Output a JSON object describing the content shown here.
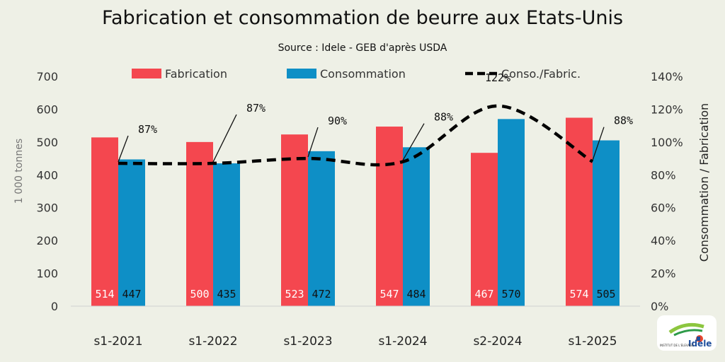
{
  "header": {
    "title": "Fabrication et consommation de beurre aux Etats-Unis",
    "subtitle": "Source : Idele - GEB d'après USDA"
  },
  "chart_data": {
    "type": "bar",
    "categories": [
      "s1-2021",
      "s1-2022",
      "s1-2023",
      "s1-2024",
      "s2-2024",
      "s1-2025"
    ],
    "series": [
      {
        "name": "Fabrication",
        "type": "bar",
        "axis": "left",
        "color": "#f4474f",
        "values": [
          514,
          500,
          523,
          547,
          467,
          574
        ]
      },
      {
        "name": "Consommation",
        "type": "bar",
        "axis": "left",
        "color": "#0e8fc6",
        "values": [
          447,
          435,
          472,
          484,
          570,
          505
        ]
      },
      {
        "name": "Conso./Fabric.",
        "type": "line",
        "style": "dashed",
        "axis": "right",
        "color": "#000000",
        "values": [
          87,
          87,
          90,
          88,
          122,
          88
        ]
      }
    ],
    "point_labels": [
      "87%",
      "87%",
      "90%",
      "88%",
      "122%",
      "88%"
    ],
    "ylabel": "1 000 tonnes",
    "ylim": [
      0,
      700
    ],
    "yticks": [
      0,
      100,
      200,
      300,
      400,
      500,
      600,
      700
    ],
    "y2label": "Consommation / Fabrication",
    "y2lim": [
      0,
      140
    ],
    "y2ticks": [
      "0%",
      "20%",
      "40%",
      "60%",
      "80%",
      "100%",
      "120%",
      "140%"
    ],
    "legend_position": "top",
    "grid": false
  },
  "logo": {
    "text": "Idele",
    "subtext": "INSTITUT DE L'ELEVAGE"
  }
}
